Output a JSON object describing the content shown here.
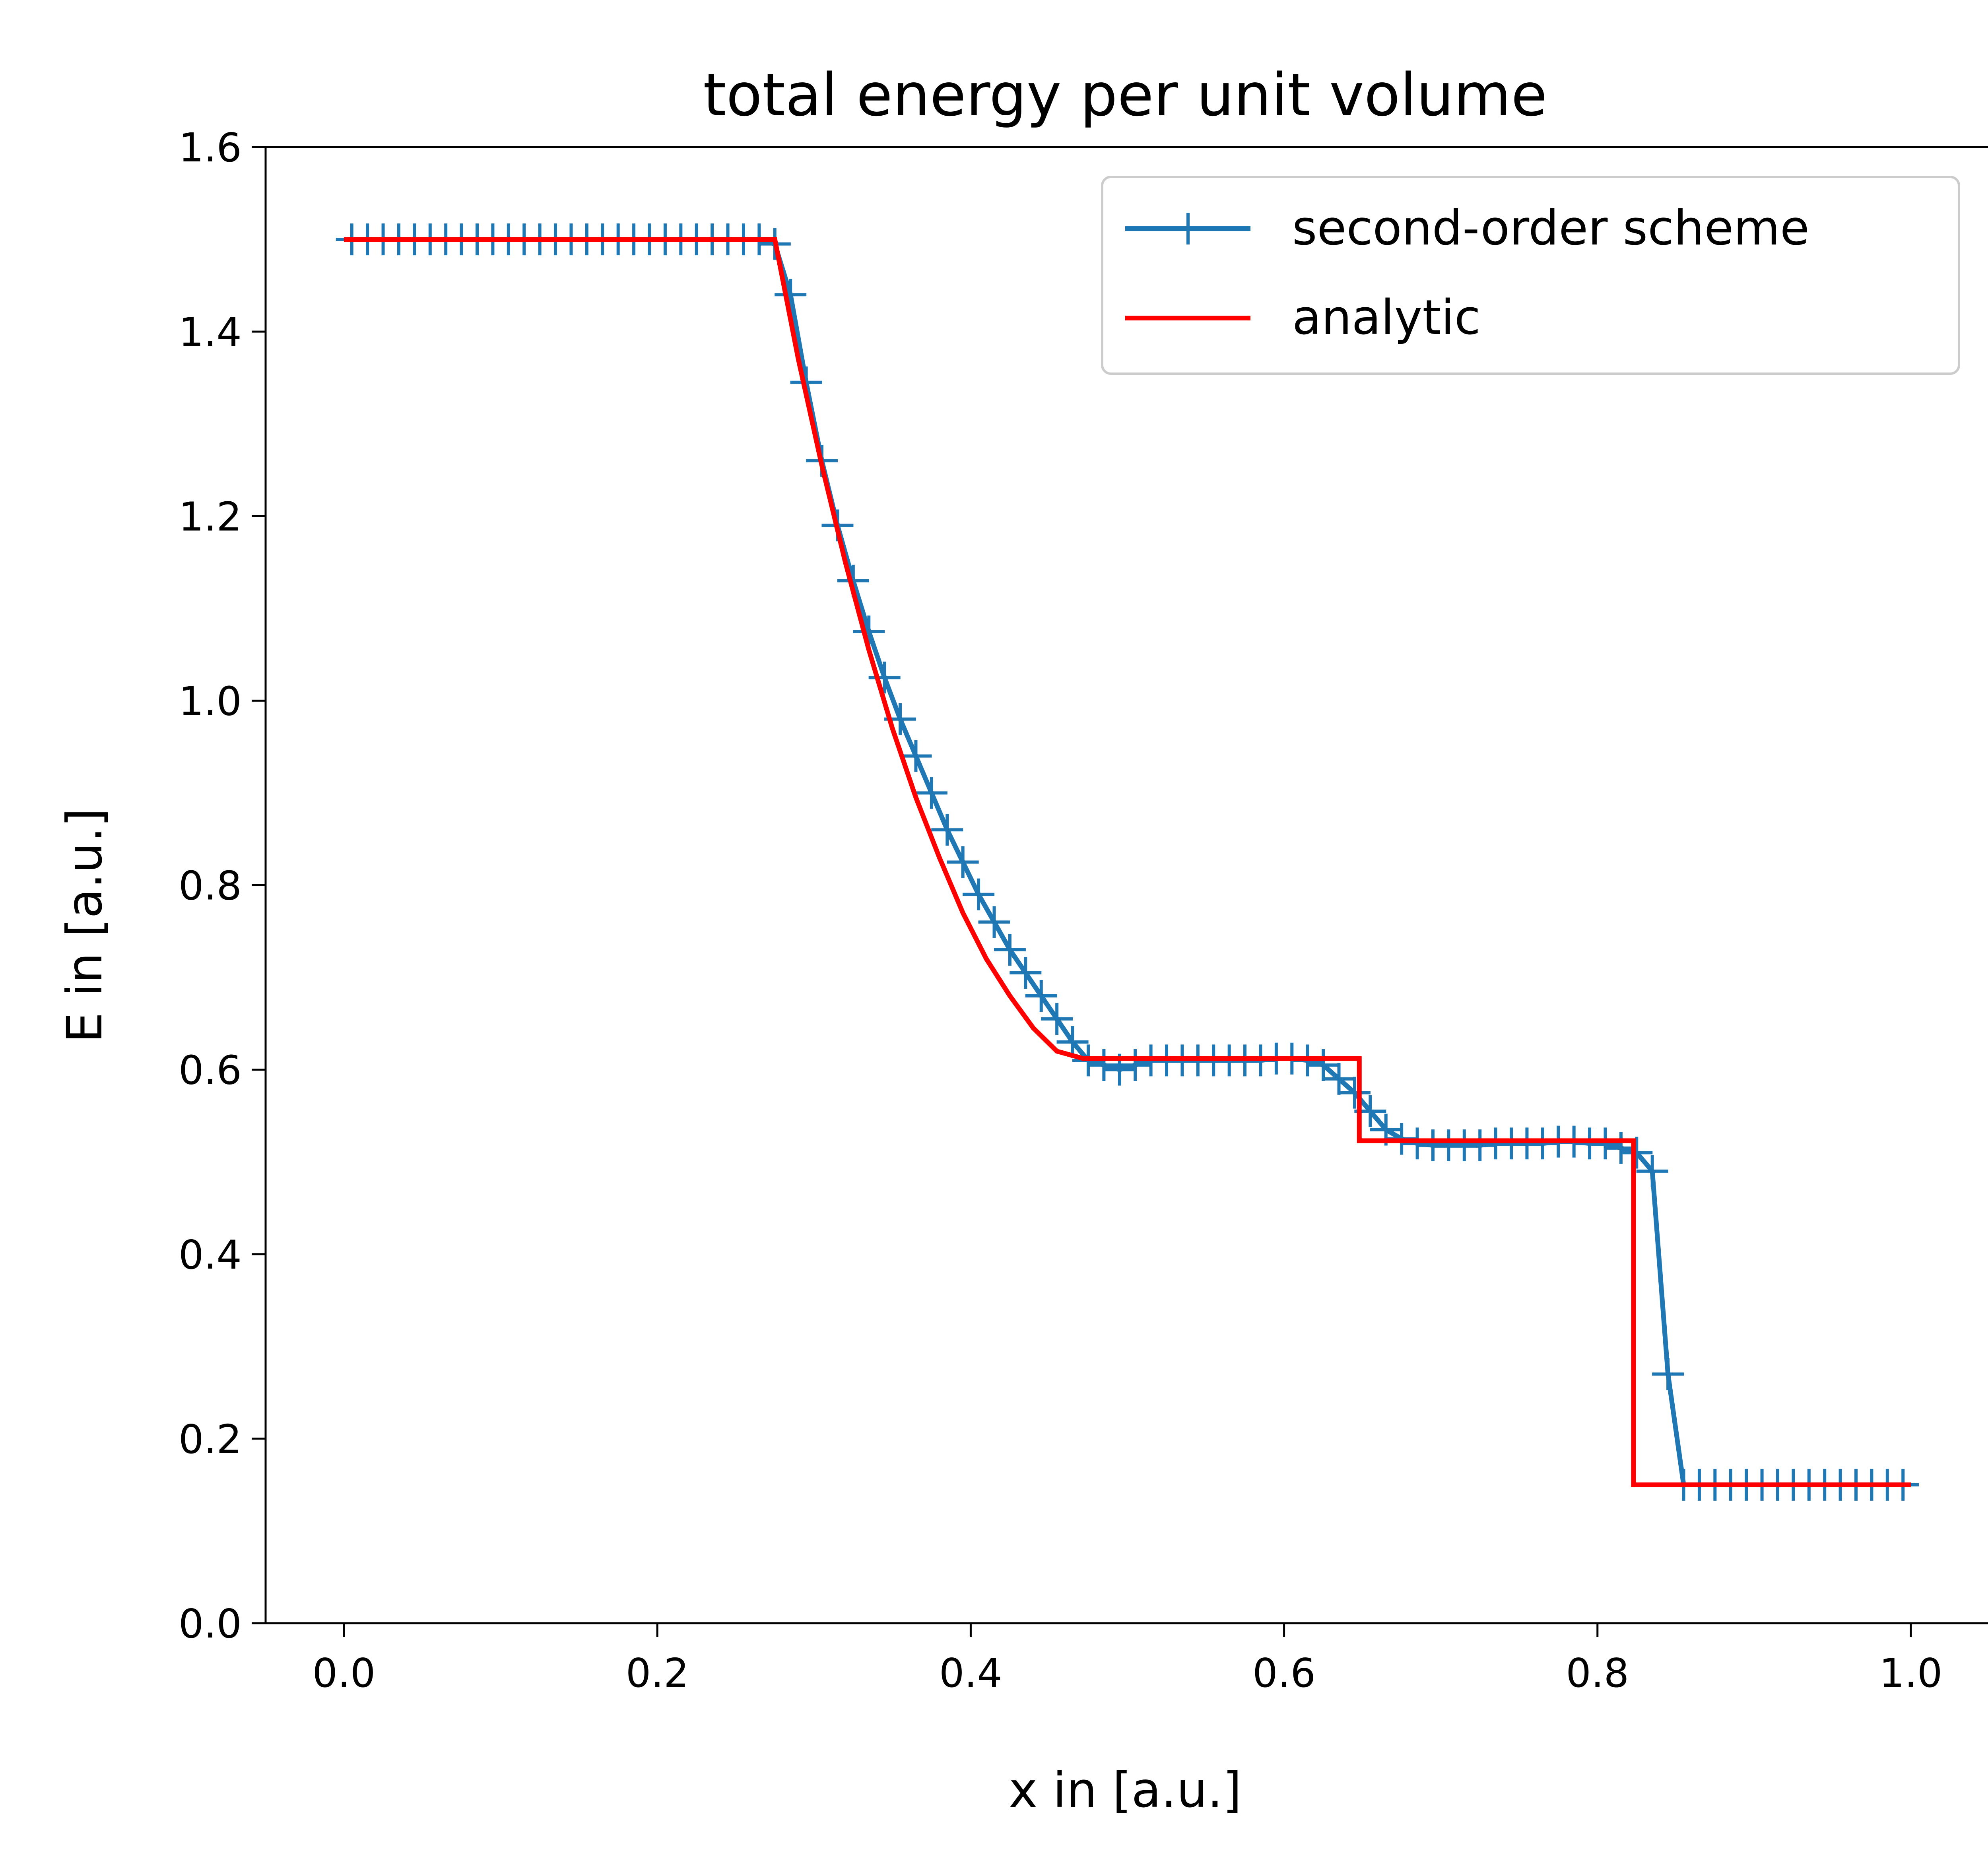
{
  "chart_data": {
    "type": "line",
    "title": "total energy per unit volume",
    "xlabel": "x in [a.u.]",
    "ylabel": "E in [a.u.]",
    "xlim": [
      -0.05,
      1.05
    ],
    "ylim": [
      0.0,
      1.6
    ],
    "xticks": [
      "0.0",
      "0.2",
      "0.4",
      "0.6",
      "0.8",
      "1.0"
    ],
    "yticks": [
      "0.0",
      "0.2",
      "0.4",
      "0.6",
      "0.8",
      "1.0",
      "1.2",
      "1.4",
      "1.6"
    ],
    "grid": false,
    "legend_position": "top-right",
    "series": [
      {
        "name": "second-order scheme",
        "color": "#1f77b4",
        "marker": "plus",
        "x": [
          0.005,
          0.015,
          0.025,
          0.035,
          0.045,
          0.055,
          0.065,
          0.075,
          0.085,
          0.095,
          0.105,
          0.115,
          0.125,
          0.135,
          0.145,
          0.155,
          0.165,
          0.175,
          0.185,
          0.195,
          0.205,
          0.215,
          0.225,
          0.235,
          0.245,
          0.255,
          0.265,
          0.275,
          0.285,
          0.295,
          0.305,
          0.315,
          0.325,
          0.335,
          0.345,
          0.355,
          0.365,
          0.375,
          0.385,
          0.395,
          0.405,
          0.415,
          0.425,
          0.435,
          0.445,
          0.455,
          0.465,
          0.475,
          0.485,
          0.495,
          0.505,
          0.515,
          0.525,
          0.535,
          0.545,
          0.555,
          0.565,
          0.575,
          0.585,
          0.595,
          0.605,
          0.615,
          0.625,
          0.635,
          0.645,
          0.655,
          0.665,
          0.675,
          0.685,
          0.695,
          0.705,
          0.715,
          0.725,
          0.735,
          0.745,
          0.755,
          0.765,
          0.775,
          0.785,
          0.795,
          0.805,
          0.815,
          0.825,
          0.835,
          0.845,
          0.855,
          0.865,
          0.875,
          0.885,
          0.895,
          0.905,
          0.915,
          0.925,
          0.935,
          0.945,
          0.955,
          0.965,
          0.975,
          0.985,
          0.995
        ],
        "y": [
          1.5,
          1.5,
          1.5,
          1.5,
          1.5,
          1.5,
          1.5,
          1.5,
          1.5,
          1.5,
          1.5,
          1.5,
          1.5,
          1.5,
          1.5,
          1.5,
          1.5,
          1.5,
          1.5,
          1.5,
          1.5,
          1.5,
          1.5,
          1.5,
          1.5,
          1.5,
          1.5,
          1.495,
          1.44,
          1.345,
          1.26,
          1.19,
          1.13,
          1.075,
          1.025,
          0.98,
          0.94,
          0.9,
          0.86,
          0.825,
          0.79,
          0.76,
          0.73,
          0.705,
          0.68,
          0.655,
          0.63,
          0.61,
          0.605,
          0.6,
          0.605,
          0.61,
          0.61,
          0.61,
          0.61,
          0.61,
          0.61,
          0.61,
          0.61,
          0.612,
          0.612,
          0.61,
          0.605,
          0.59,
          0.575,
          0.555,
          0.535,
          0.525,
          0.52,
          0.518,
          0.518,
          0.518,
          0.518,
          0.52,
          0.52,
          0.52,
          0.52,
          0.522,
          0.522,
          0.52,
          0.52,
          0.515,
          0.51,
          0.49,
          0.27,
          0.15,
          0.15,
          0.15,
          0.15,
          0.15,
          0.15,
          0.15,
          0.15,
          0.15,
          0.15,
          0.15,
          0.15,
          0.15,
          0.15,
          0.15
        ]
      },
      {
        "name": "analytic",
        "color": "#ff0000",
        "x": [
          0.0,
          0.275,
          0.29,
          0.305,
          0.32,
          0.335,
          0.35,
          0.365,
          0.38,
          0.395,
          0.41,
          0.425,
          0.44,
          0.455,
          0.472,
          0.648,
          0.648,
          0.823,
          0.823,
          1.0
        ],
        "y": [
          1.5,
          1.5,
          1.37,
          1.255,
          1.15,
          1.055,
          0.97,
          0.895,
          0.83,
          0.77,
          0.72,
          0.68,
          0.645,
          0.62,
          0.612,
          0.612,
          0.523,
          0.523,
          0.15,
          0.15
        ]
      }
    ]
  }
}
